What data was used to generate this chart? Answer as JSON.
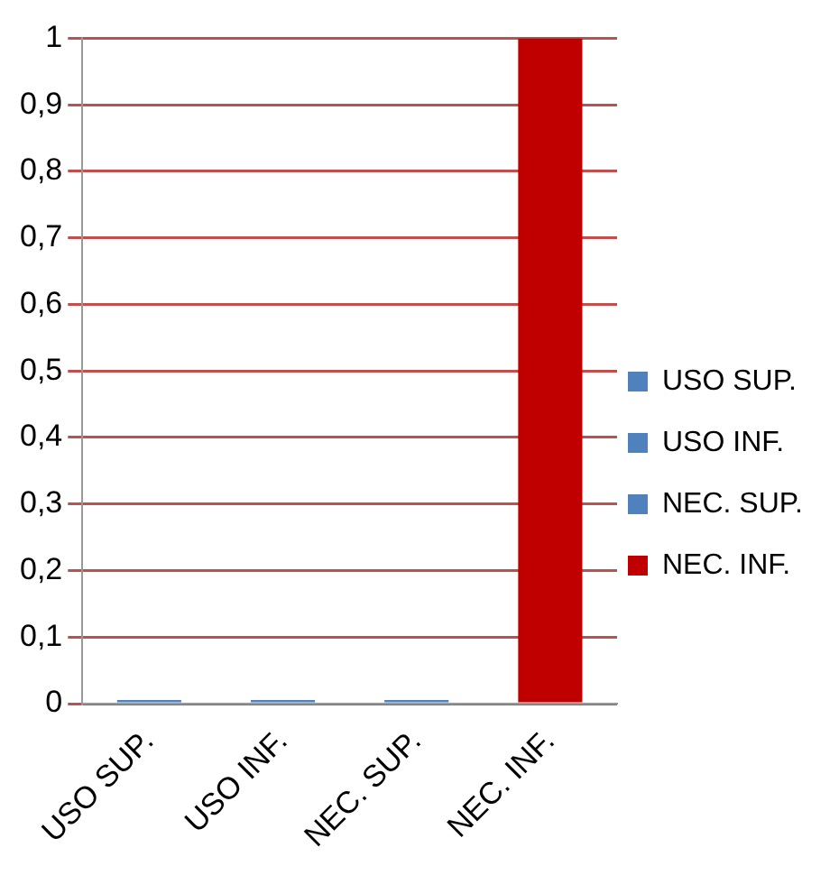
{
  "chart_data": {
    "type": "bar",
    "categories": [
      "USO SUP.",
      "USO INF.",
      "NEC. SUP.",
      "NEC. INF."
    ],
    "series": [
      {
        "name": "USO SUP.",
        "color": "#4f81bd",
        "values": [
          0,
          null,
          null,
          null
        ]
      },
      {
        "name": "USO INF.",
        "color": "#4f81bd",
        "values": [
          null,
          0,
          null,
          null
        ]
      },
      {
        "name": "NEC. SUP.",
        "color": "#4f81bd",
        "values": [
          null,
          null,
          0,
          null
        ]
      },
      {
        "name": "NEC. INF.",
        "color": "#c00000",
        "values": [
          null,
          null,
          null,
          1
        ]
      }
    ],
    "stacked": true,
    "ylim": [
      0,
      1
    ],
    "yticks": [
      0,
      {
        "value": 0.1,
        "label": "0,1"
      },
      {
        "value": 0.2,
        "label": "0,2"
      },
      {
        "value": 0.3,
        "label": "0,3"
      },
      {
        "value": 0.4,
        "label": "0,4"
      },
      {
        "value": 0.5,
        "label": "0,5"
      },
      {
        "value": 0.6,
        "label": "0,6"
      },
      {
        "value": 0.7,
        "label": "0,7"
      },
      {
        "value": 0.8,
        "label": "0,8"
      },
      {
        "value": 0.9,
        "label": "0,9"
      },
      1
    ],
    "grid": "y",
    "legend": "right"
  }
}
